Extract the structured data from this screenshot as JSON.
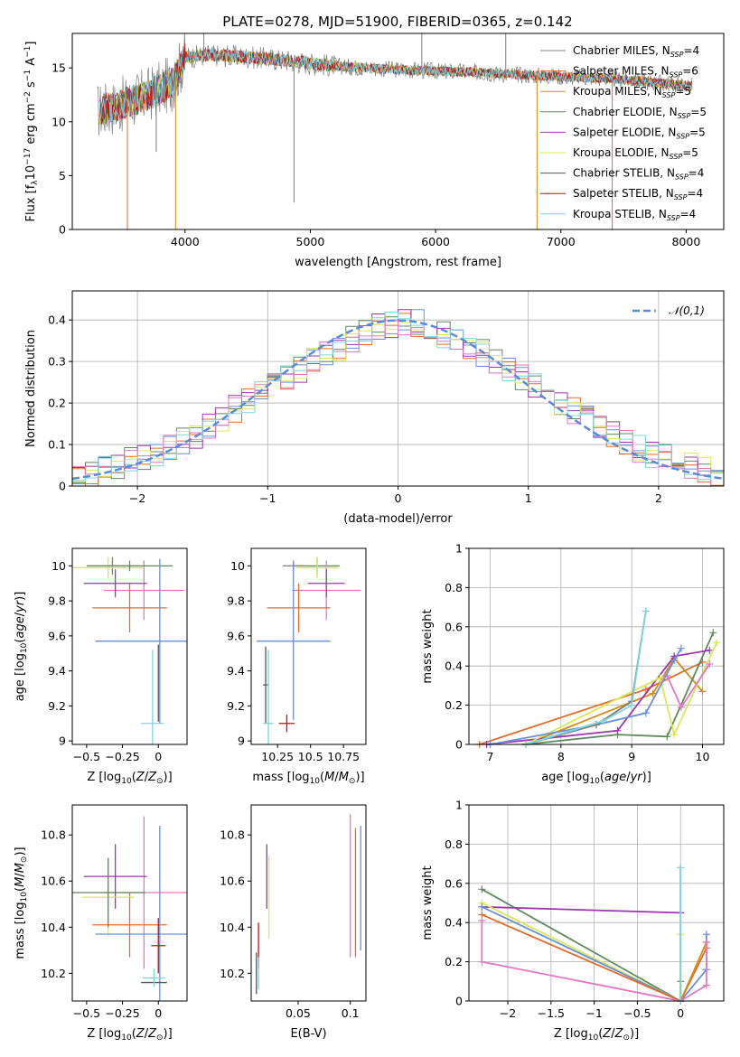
{
  "title": "PLATE=0278, MJD=51900, FIBERID=0365, z=0.142",
  "colors": {
    "Chabrier MILES": "#7f7f7f",
    "Salpeter MILES": "#e06c2c",
    "Kroupa MILES": "#d48b1a",
    "Chabrier ELODIE": "#5e8a5e",
    "Salpeter ELODIE": "#9b36b0",
    "Kroupa ELODIE": "#d8e85a",
    "Chabrier STELIB": "#555555",
    "Salpeter STELIB": "#c01010",
    "Kroupa STELIB": "#7fd4e0"
  },
  "chart_data": [
    {
      "id": "spectrum",
      "type": "line",
      "title": "PLATE=0278, MJD=51900, FIBERID=0365, z=0.142",
      "xlabel": "wavelength [Angstrom, rest frame]",
      "ylabel": "Flux [f_λ 10^-17 erg cm^-2 s^-1 A^-1]",
      "xlim": [
        3100,
        8300
      ],
      "ylim": [
        0,
        18.2
      ],
      "xticks": [
        4000,
        5000,
        6000,
        7000,
        8000
      ],
      "yticks": [
        0,
        5,
        10,
        15
      ],
      "legend_position": "right",
      "legend": [
        {
          "pre": "Chabrier MILES, N",
          "sub": "SSP",
          "post": "=4",
          "color": "#7f7f7f"
        },
        {
          "pre": "Salpeter MILES, N",
          "sub": "SSP",
          "post": "=6",
          "color": "#e06c2c"
        },
        {
          "pre": "Kroupa MILES, N",
          "sub": "SSP",
          "post": "=5",
          "color": "#d48b1a"
        },
        {
          "pre": "Chabrier ELODIE, N",
          "sub": "SSP",
          "post": "=5",
          "color": "#5e8a5e"
        },
        {
          "pre": "Salpeter ELODIE, N",
          "sub": "SSP",
          "post": "=5",
          "color": "#9b36b0"
        },
        {
          "pre": "Kroupa ELODIE, N",
          "sub": "SSP",
          "post": "=5",
          "color": "#d8e85a"
        },
        {
          "pre": "Chabrier STELIB, N",
          "sub": "SSP",
          "post": "=4",
          "color": "#555555"
        },
        {
          "pre": "Salpeter STELIB, N",
          "sub": "SSP",
          "post": "=4",
          "color": "#c01010"
        },
        {
          "pre": "Kroupa STELIB, N",
          "sub": "SSP",
          "post": "=4",
          "color": "#7fd4e0"
        }
      ],
      "continuum": {
        "x": [
          3300,
          3500,
          3700,
          3900,
          4000,
          4200,
          4500,
          4800,
          5000,
          5300,
          5600,
          6000,
          6300,
          6600,
          7000,
          7400,
          7800,
          8050
        ],
        "y": [
          11.0,
          11.6,
          12.5,
          13.6,
          16.0,
          16.2,
          16.0,
          15.7,
          15.4,
          15.1,
          14.9,
          14.7,
          14.6,
          14.4,
          14.2,
          14.0,
          13.6,
          13.3
        ]
      },
      "spikes": [
        {
          "x": 3540,
          "y": 0,
          "color": "#e06c2c"
        },
        {
          "x": 3925,
          "y": 0,
          "color": "#d48b1a"
        },
        {
          "x": 6810,
          "y": 0,
          "color": "#d48b1a"
        },
        {
          "x": 7410,
          "y": 0,
          "color": "#e06c2c"
        },
        {
          "x": 4870,
          "y": 2.5,
          "color": "#7f7f7f"
        },
        {
          "x": 3770,
          "y": 7.2,
          "color": "#7f7f7f"
        },
        {
          "x": 4150,
          "y": 18.2,
          "color": "#7f7f7f"
        },
        {
          "x": 5890,
          "y": 18.2,
          "color": "#7f7f7f"
        },
        {
          "x": 6560,
          "y": 18.2,
          "color": "#7f7f7f"
        }
      ]
    },
    {
      "id": "residuals",
      "type": "bar",
      "xlabel": "(data-model)/error",
      "ylabel": "Normed distribution",
      "xlim": [
        -2.5,
        2.5
      ],
      "ylim": [
        0,
        0.47
      ],
      "xticks": [
        -2,
        -1,
        0,
        1,
        2
      ],
      "yticks": [
        0.0,
        0.1,
        0.2,
        0.3,
        0.4
      ],
      "legend": "𝒩(0,1)",
      "legend_position": "top-right",
      "grid": true,
      "bin_width": 0.1,
      "bin_start": -2.5,
      "histogram": [
        0.024,
        0.031,
        0.04,
        0.05,
        0.058,
        0.068,
        0.078,
        0.09,
        0.106,
        0.125,
        0.145,
        0.165,
        0.185,
        0.205,
        0.225,
        0.245,
        0.262,
        0.28,
        0.298,
        0.318,
        0.335,
        0.352,
        0.368,
        0.382,
        0.392,
        0.396,
        0.392,
        0.382,
        0.368,
        0.352,
        0.335,
        0.318,
        0.298,
        0.28,
        0.262,
        0.245,
        0.225,
        0.205,
        0.185,
        0.165,
        0.145,
        0.125,
        0.106,
        0.09,
        0.078,
        0.068,
        0.058,
        0.05,
        0.04,
        0.031
      ]
    },
    {
      "id": "age-vs-Z",
      "type": "scatter",
      "xlabel": "Z [log10(Z/Z⊙)]",
      "ylabel": "age [log10(age/yr)]",
      "xlim": [
        -0.6,
        0.2
      ],
      "ylim": [
        8.98,
        10.1
      ],
      "xticks": [
        -0.5,
        -0.25,
        0.0
      ],
      "yticks": [
        9.0,
        9.2,
        9.4,
        9.6,
        9.8,
        10.0
      ],
      "points": [
        {
          "x": -0.32,
          "y": 10.0,
          "xerr": 0.18,
          "yerr": 0.05,
          "color": "#7f7f7f"
        },
        {
          "x": -0.1,
          "y": 9.86,
          "xerr": 0.28,
          "yerr": 0.17,
          "color": "#e377c2"
        },
        {
          "x": -0.2,
          "y": 9.76,
          "xerr": 0.26,
          "yerr": 0.14,
          "color": "#e06c2c"
        },
        {
          "x": -0.3,
          "y": 9.9,
          "xerr": 0.22,
          "yerr": 0.08,
          "color": "#9b36b0"
        },
        {
          "x": -0.35,
          "y": 9.99,
          "xerr": 0.25,
          "yerr": 0.06,
          "color": "#d8e85a"
        },
        {
          "x": -0.2,
          "y": 10.0,
          "xerr": 0.3,
          "yerr": 0.03,
          "color": "#5e8a5e"
        },
        {
          "x": 0.01,
          "y": 9.57,
          "xerr": 0.45,
          "yerr": 0.47,
          "color": "#6a8ed8"
        },
        {
          "x": 0.0,
          "y": 9.33,
          "xerr": 0.0,
          "yerr": 0.22,
          "color": "#555555"
        },
        {
          "x": -0.04,
          "y": 9.1,
          "xerr": 0.08,
          "yerr": 0.42,
          "color": "#7fd4e0"
        }
      ]
    },
    {
      "id": "age-vs-mass",
      "type": "scatter",
      "xlabel": "mass [log10(M/M⊙)]",
      "xlim": [
        10.05,
        10.92
      ],
      "ylim": [
        8.98,
        10.1
      ],
      "xticks": [
        10.25,
        10.5,
        10.75
      ],
      "yticks": [
        9.0,
        9.2,
        9.4,
        9.6,
        9.8,
        10.0
      ],
      "points": [
        {
          "x": 10.55,
          "y": 10.0,
          "xerr": 0.17,
          "yerr": 0.05,
          "color": "#5e8a5e"
        },
        {
          "x": 10.62,
          "y": 9.86,
          "xerr": 0.26,
          "yerr": 0.17,
          "color": "#e377c2"
        },
        {
          "x": 10.41,
          "y": 9.76,
          "xerr": 0.24,
          "yerr": 0.14,
          "color": "#e06c2c"
        },
        {
          "x": 10.62,
          "y": 9.9,
          "xerr": 0.14,
          "yerr": 0.08,
          "color": "#9b36b0"
        },
        {
          "x": 10.55,
          "y": 9.99,
          "xerr": 0.16,
          "yerr": 0.06,
          "color": "#d8e85a"
        },
        {
          "x": 10.37,
          "y": 10.0,
          "xerr": 0.08,
          "yerr": 0.03,
          "color": "#7f7f7f"
        },
        {
          "x": 10.37,
          "y": 9.57,
          "xerr": 0.28,
          "yerr": 0.45,
          "color": "#6a8ed8"
        },
        {
          "x": 10.16,
          "y": 9.32,
          "xerr": 0.02,
          "yerr": 0.22,
          "color": "#555555"
        },
        {
          "x": 10.32,
          "y": 9.1,
          "xerr": 0.06,
          "yerr": 0.05,
          "color": "#c01010"
        },
        {
          "x": 10.18,
          "y": 9.1,
          "xerr": 0.04,
          "yerr": 0.42,
          "color": "#7fd4e0"
        }
      ]
    },
    {
      "id": "massweight-vs-age",
      "type": "line",
      "xlabel": "age [log10(age/yr)]",
      "ylabel": "mass weight",
      "xlim": [
        6.7,
        10.3
      ],
      "ylim": [
        0,
        1.0
      ],
      "xticks": [
        7,
        8,
        9,
        10
      ],
      "yticks": [
        0.0,
        0.2,
        0.4,
        0.6,
        0.8,
        1.0
      ],
      "grid": true,
      "series": [
        {
          "color": "#e06c2c",
          "x": [
            6.85,
            9.2,
            10.0
          ],
          "y": [
            0.0,
            0.28,
            0.42
          ]
        },
        {
          "color": "#d48b1a",
          "x": [
            7.5,
            9.3,
            9.6,
            10.0
          ],
          "y": [
            0.0,
            0.26,
            0.44,
            0.27
          ]
        },
        {
          "color": "#5e8a5e",
          "x": [
            7.5,
            8.8,
            9.5,
            10.15
          ],
          "y": [
            0.0,
            0.05,
            0.04,
            0.57
          ]
        },
        {
          "color": "#9b36b0",
          "x": [
            6.95,
            8.8,
            9.6,
            10.1
          ],
          "y": [
            0.0,
            0.07,
            0.45,
            0.48
          ]
        },
        {
          "color": "#d8e85a",
          "x": [
            7.5,
            9.4,
            9.6,
            10.2
          ],
          "y": [
            0.0,
            0.34,
            0.05,
            0.52
          ]
        },
        {
          "color": "#e377c2",
          "x": [
            9.5,
            9.7,
            10.1
          ],
          "y": [
            0.35,
            0.19,
            0.41
          ]
        },
        {
          "color": "#6a8ed8",
          "x": [
            7.0,
            8.5,
            9.2,
            9.6,
            9.7
          ],
          "y": [
            0.0,
            0.1,
            0.16,
            0.43,
            0.49
          ]
        },
        {
          "color": "#7f7f7f",
          "x": [
            7.5,
            8.5,
            9.0,
            9.2
          ],
          "y": [
            0.0,
            0.1,
            0.22,
            0.68
          ]
        },
        {
          "color": "#7fd4e0",
          "x": [
            7.5,
            8.6,
            9.0,
            9.2
          ],
          "y": [
            0.0,
            0.12,
            0.2,
            0.68
          ]
        }
      ]
    },
    {
      "id": "mass-vs-Z",
      "type": "scatter",
      "xlabel": "Z [log10(Z/Z⊙)]",
      "ylabel": "mass [log10(M/M⊙)]",
      "xlim": [
        -0.6,
        0.2
      ],
      "ylim": [
        10.08,
        10.93
      ],
      "xticks": [
        -0.5,
        -0.25,
        0.0
      ],
      "yticks": [
        10.2,
        10.4,
        10.6,
        10.8
      ],
      "points": [
        {
          "x": -0.1,
          "y": 10.55,
          "xerr": 0.3,
          "yerr": 0.33,
          "color": "#e377c2"
        },
        {
          "x": -0.2,
          "y": 10.41,
          "xerr": 0.26,
          "yerr": 0.14,
          "color": "#e06c2c"
        },
        {
          "x": -0.3,
          "y": 10.62,
          "xerr": 0.22,
          "yerr": 0.14,
          "color": "#9b36b0"
        },
        {
          "x": -0.35,
          "y": 10.53,
          "xerr": 0.18,
          "yerr": 0.17,
          "color": "#d8e85a"
        },
        {
          "x": -0.35,
          "y": 10.55,
          "xerr": 0.26,
          "yerr": 0.15,
          "color": "#5e8a5e"
        },
        {
          "x": 0.01,
          "y": 10.37,
          "xerr": 0.45,
          "yerr": 0.47,
          "color": "#6a8ed8"
        },
        {
          "x": 0.0,
          "y": 10.32,
          "xerr": 0.05,
          "yerr": 0.12,
          "color": "#c01010"
        },
        {
          "x": -0.03,
          "y": 10.16,
          "xerr": 0.09,
          "yerr": 0.0,
          "color": "#555555"
        },
        {
          "x": -0.03,
          "y": 10.18,
          "xerr": 0.08,
          "yerr": 0.04,
          "color": "#7fd4e0"
        }
      ]
    },
    {
      "id": "mass-vs-EBV",
      "type": "scatter",
      "xlabel": "E(B-V)",
      "xlim": [
        0.005,
        0.115
      ],
      "ylim": [
        10.08,
        10.93
      ],
      "xticks": [
        0.05,
        0.1
      ],
      "yticks": [
        10.2,
        10.4,
        10.6,
        10.8
      ],
      "points": [
        {
          "x": 0.1,
          "y": 10.58,
          "xerr": 0.0,
          "yerr": 0.31,
          "color": "#e377c2"
        },
        {
          "x": 0.105,
          "y": 10.55,
          "xerr": 0.0,
          "yerr": 0.28,
          "color": "#e06c2c"
        },
        {
          "x": 0.11,
          "y": 10.57,
          "xerr": 0.0,
          "yerr": 0.27,
          "color": "#6a8ed8"
        },
        {
          "x": 0.02,
          "y": 10.62,
          "xerr": 0.0,
          "yerr": 0.14,
          "color": "#9b36b0"
        },
        {
          "x": 0.022,
          "y": 10.53,
          "xerr": 0.0,
          "yerr": 0.18,
          "color": "#d8e85a"
        },
        {
          "x": 0.012,
          "y": 10.32,
          "xerr": 0.0,
          "yerr": 0.1,
          "color": "#c01010"
        },
        {
          "x": 0.01,
          "y": 10.2,
          "xerr": 0.0,
          "yerr": 0.09,
          "color": "#555555"
        },
        {
          "x": 0.012,
          "y": 10.2,
          "xerr": 0.0,
          "yerr": 0.07,
          "color": "#7fd4e0"
        }
      ]
    },
    {
      "id": "massweight-vs-Z",
      "type": "line",
      "xlabel": "Z [log10(Z/Z⊙)]",
      "ylabel": "mass weight",
      "xlim": [
        -2.45,
        0.5
      ],
      "ylim": [
        0,
        1.0
      ],
      "xticks": [
        -2.0,
        -1.5,
        -1.0,
        -0.5,
        0.0
      ],
      "yticks": [
        0.0,
        0.2,
        0.4,
        0.6,
        0.8,
        1.0
      ],
      "grid": true,
      "series": [
        {
          "color": "#5e8a5e",
          "x": [
            -2.3,
            0.0,
            0.0
          ],
          "y": [
            0.57,
            0.0,
            0.1
          ]
        },
        {
          "color": "#9b36b0",
          "x": [
            -2.3,
            0.0
          ],
          "y": [
            0.48,
            0.45
          ]
        },
        {
          "color": "#d8e85a",
          "x": [
            -2.3,
            0.0,
            0.0
          ],
          "y": [
            0.5,
            0.0,
            0.34
          ]
        },
        {
          "color": "#6a8ed8",
          "x": [
            -2.3,
            0.0,
            0.3,
            0.3
          ],
          "y": [
            0.48,
            0.0,
            0.16,
            0.34
          ]
        },
        {
          "color": "#e06c2c",
          "x": [
            -2.3,
            0.0,
            0.3
          ],
          "y": [
            0.44,
            0.0,
            0.27
          ]
        },
        {
          "color": "#d48b1a",
          "x": [
            0.0,
            0.3
          ],
          "y": [
            0.0,
            0.3
          ]
        },
        {
          "color": "#e377c2",
          "x": [
            -2.3,
            -2.3,
            0.0,
            0.3,
            0.3
          ],
          "y": [
            0.41,
            0.2,
            0.0,
            0.08,
            0.3
          ]
        },
        {
          "color": "#7f7f7f",
          "x": [
            0.0,
            0.0
          ],
          "y": [
            0.0,
            0.68
          ]
        },
        {
          "color": "#7fd4e0",
          "x": [
            0.0,
            0.0
          ],
          "y": [
            0.0,
            0.68
          ]
        }
      ]
    }
  ]
}
